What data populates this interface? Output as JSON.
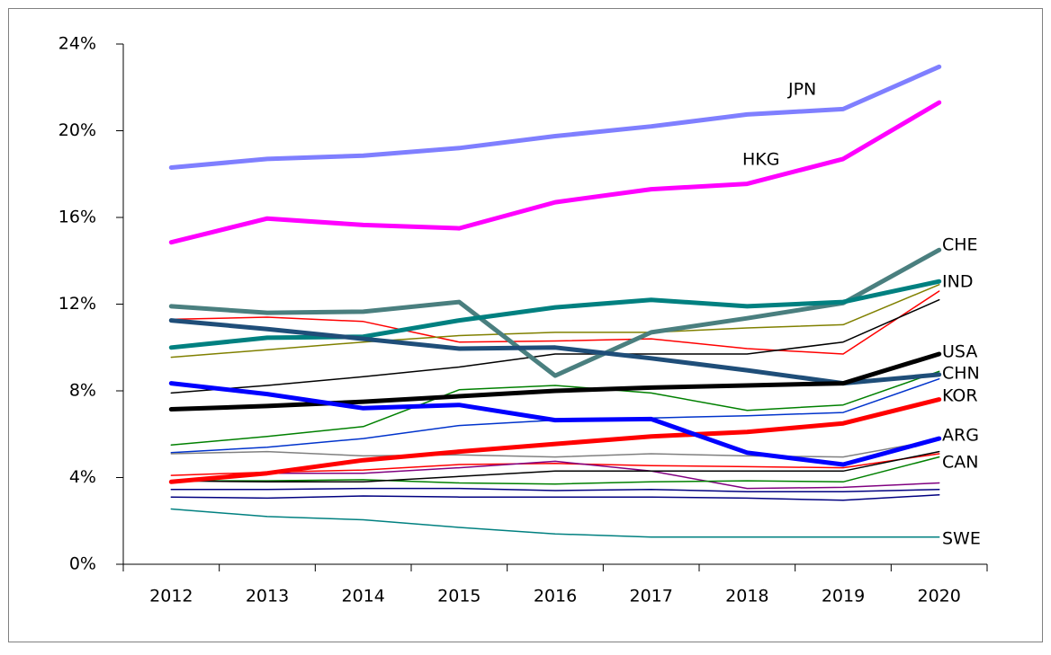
{
  "chart_data": {
    "type": "line",
    "categories": [
      "2012",
      "2013",
      "2014",
      "2015",
      "2016",
      "2017",
      "2018",
      "2019",
      "2020"
    ],
    "ylim": [
      0,
      24
    ],
    "yticks": [
      {
        "value": 0,
        "label": "0%"
      },
      {
        "value": 4,
        "label": "4%"
      },
      {
        "value": 8,
        "label": "8%"
      },
      {
        "value": 12,
        "label": "12%"
      },
      {
        "value": 16,
        "label": "16%"
      },
      {
        "value": 20,
        "label": "20%"
      },
      {
        "value": 24,
        "label": "24%"
      }
    ],
    "series": [
      {
        "color": "#ff0000",
        "width": "thin",
        "values": [
          11.3,
          11.4,
          11.2,
          10.25,
          10.3,
          10.4,
          9.95,
          9.7,
          12.6
        ]
      },
      {
        "color": "#808000",
        "width": "thin",
        "values": [
          9.55,
          9.9,
          10.25,
          10.55,
          10.7,
          10.7,
          10.9,
          11.05,
          12.9
        ]
      },
      {
        "color": "#000000",
        "width": "thin",
        "values": [
          7.9,
          8.25,
          8.65,
          9.1,
          9.7,
          9.7,
          9.7,
          10.25,
          12.2
        ]
      },
      {
        "color": "#008000",
        "width": "thin",
        "values": [
          5.5,
          5.9,
          6.35,
          8.05,
          8.25,
          7.9,
          7.1,
          7.35,
          8.9
        ]
      },
      {
        "color": "#0033cc",
        "width": "thin",
        "values": [
          5.15,
          5.4,
          5.8,
          6.4,
          6.65,
          6.75,
          6.85,
          7.0,
          8.55
        ]
      },
      {
        "color": "#808080",
        "width": "thin",
        "values": [
          5.1,
          5.2,
          5.0,
          5.05,
          4.95,
          5.1,
          5.0,
          4.95,
          5.75
        ]
      },
      {
        "color": "#ff0000",
        "width": "thin",
        "values": [
          4.1,
          4.25,
          4.35,
          4.6,
          4.65,
          4.55,
          4.5,
          4.45,
          5.1
        ]
      },
      {
        "color": "#800080",
        "width": "thin",
        "values": [
          3.8,
          4.2,
          4.2,
          4.45,
          4.75,
          4.3,
          3.5,
          3.55,
          3.75
        ]
      },
      {
        "color": "#008000",
        "width": "thin",
        "values": [
          3.85,
          3.85,
          3.9,
          3.75,
          3.7,
          3.8,
          3.85,
          3.8,
          4.95
        ]
      },
      {
        "color": "#000080",
        "width": "thin",
        "values": [
          3.45,
          3.45,
          3.5,
          3.5,
          3.4,
          3.45,
          3.35,
          3.35,
          3.45
        ]
      },
      {
        "color": "#000080",
        "width": "thin",
        "values": [
          3.1,
          3.05,
          3.15,
          3.1,
          3.1,
          3.1,
          3.05,
          2.95,
          3.2
        ]
      },
      {
        "name": "CAN",
        "color": "#000000",
        "width": "thin",
        "values": [
          3.85,
          3.8,
          3.8,
          4.05,
          4.3,
          4.3,
          4.3,
          4.3,
          5.2
        ]
      },
      {
        "name": "SWE",
        "color": "#008080",
        "width": "thin",
        "values": [
          2.55,
          2.2,
          2.05,
          1.7,
          1.4,
          1.25,
          1.25,
          1.25,
          1.25
        ]
      },
      {
        "name": "JPN",
        "color": "#7f7fff",
        "width": "thick",
        "values": [
          18.3,
          18.7,
          18.85,
          19.2,
          19.75,
          20.2,
          20.75,
          21.0,
          22.95
        ]
      },
      {
        "name": "HKG",
        "color": "#ff00ff",
        "width": "thick",
        "values": [
          14.85,
          15.95,
          15.65,
          15.5,
          16.7,
          17.3,
          17.55,
          18.7,
          21.3
        ]
      },
      {
        "name": "CHE",
        "color": "#4a7f7f",
        "width": "thick",
        "values": [
          11.9,
          11.6,
          11.65,
          12.1,
          8.7,
          10.7,
          11.35,
          12.05,
          14.5
        ]
      },
      {
        "name": "IND",
        "color": "#008080",
        "width": "thick",
        "values": [
          10.0,
          10.45,
          10.5,
          11.25,
          11.85,
          12.2,
          11.9,
          12.1,
          13.05
        ]
      },
      {
        "name": "CHN",
        "color": "#1f4e79",
        "width": "thick",
        "values": [
          11.25,
          10.85,
          10.4,
          9.95,
          10.0,
          9.5,
          8.95,
          8.35,
          8.75
        ]
      },
      {
        "name": "USA",
        "color": "#000000",
        "width": "thick",
        "values": [
          7.15,
          7.3,
          7.5,
          7.75,
          8.0,
          8.15,
          8.25,
          8.35,
          9.7
        ]
      },
      {
        "name": "KOR",
        "color": "#ff0000",
        "width": "thick",
        "values": [
          3.8,
          4.2,
          4.8,
          5.2,
          5.55,
          5.9,
          6.1,
          6.5,
          7.6
        ]
      },
      {
        "name": "ARG",
        "color": "#0000ff",
        "width": "thick",
        "values": [
          8.35,
          7.85,
          7.2,
          7.35,
          6.65,
          6.7,
          5.15,
          4.6,
          5.8
        ]
      }
    ]
  }
}
